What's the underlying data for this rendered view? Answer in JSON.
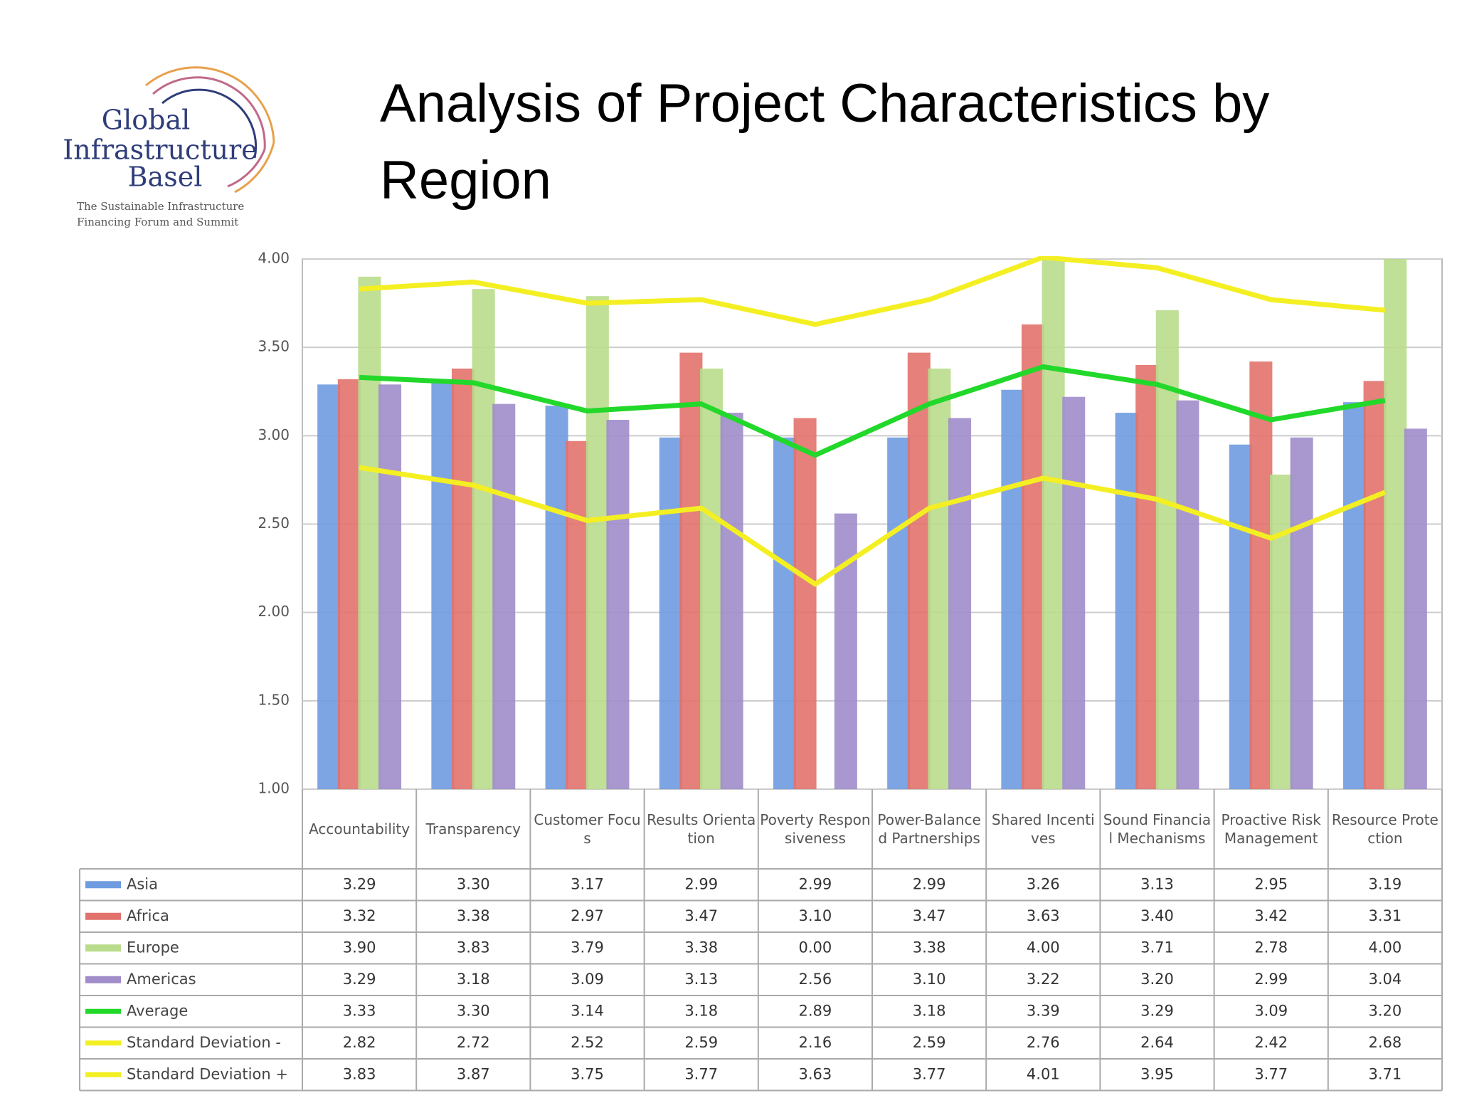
{
  "logo": {
    "lines": [
      "Global",
      "Infrastructure",
      "Basel"
    ],
    "tagline": [
      "The Sustainable Infrastructure",
      "Financing Forum and Summit"
    ]
  },
  "chart_data": {
    "type": "bar",
    "title": "Analysis of Project Characteristics by Region",
    "categories": [
      "Accountability",
      "Transparency",
      "Customer Focus",
      "Results Orientation",
      "Poverty Responsiveness",
      "Power-Balanced Partnerships",
      "Shared Incentives",
      "Sound Financial Mechanisms",
      "Proactive Risk Management",
      "Resource Protection"
    ],
    "ylim": [
      1,
      4
    ],
    "yticks": [
      {
        "value": 1,
        "label": "1.00"
      },
      {
        "value": 1.5,
        "label": "1.50"
      },
      {
        "value": 2,
        "label": "2.00"
      },
      {
        "value": 2.5,
        "label": "2.50"
      },
      {
        "value": 3,
        "label": "3.00"
      },
      {
        "value": 3.5,
        "label": "3.50"
      },
      {
        "value": 4,
        "label": "4.00"
      }
    ],
    "grid": true,
    "series": [
      {
        "name": "Asia",
        "type": "bar",
        "color": "#6f9be0",
        "values": [
          3.29,
          3.3,
          3.17,
          2.99,
          2.99,
          2.99,
          3.26,
          3.13,
          2.95,
          3.19
        ],
        "value_labels": [
          "3.29",
          "3.30",
          "3.17",
          "2.99",
          "2.99",
          "2.99",
          "3.26",
          "3.13",
          "2.95",
          "3.19"
        ]
      },
      {
        "name": "Africa",
        "type": "bar",
        "color": "#e2726c",
        "values": [
          3.32,
          3.38,
          2.97,
          3.47,
          3.1,
          3.47,
          3.63,
          3.4,
          3.42,
          3.31
        ],
        "value_labels": [
          "3.32",
          "3.38",
          "2.97",
          "3.47",
          "3.10",
          "3.47",
          "3.63",
          "3.40",
          "3.42",
          "3.31"
        ]
      },
      {
        "name": "Europe",
        "type": "bar",
        "color": "#b9dc8c",
        "values": [
          3.9,
          3.83,
          3.79,
          3.38,
          0,
          3.38,
          4,
          3.71,
          2.78,
          4
        ],
        "value_labels": [
          "3.90",
          "3.83",
          "3.79",
          "3.38",
          "0.00",
          "3.38",
          "4.00",
          "3.71",
          "2.78",
          "4.00"
        ]
      },
      {
        "name": "Americas",
        "type": "bar",
        "color": "#a08dca",
        "values": [
          3.29,
          3.18,
          3.09,
          3.13,
          2.56,
          3.1,
          3.22,
          3.2,
          2.99,
          3.04
        ],
        "value_labels": [
          "3.29",
          "3.18",
          "3.09",
          "3.13",
          "2.56",
          "3.10",
          "3.22",
          "3.20",
          "2.99",
          "3.04"
        ]
      },
      {
        "name": "Average",
        "type": "line",
        "color": "#22d82a",
        "values": [
          3.33,
          3.3,
          3.14,
          3.18,
          2.89,
          3.18,
          3.39,
          3.29,
          3.09,
          3.2
        ],
        "value_labels": [
          "3.33",
          "3.30",
          "3.14",
          "3.18",
          "2.89",
          "3.18",
          "3.39",
          "3.29",
          "3.09",
          "3.20"
        ]
      },
      {
        "name": "Standard Deviation -",
        "type": "line",
        "color": "#f4ef22",
        "values": [
          2.82,
          2.72,
          2.52,
          2.59,
          2.16,
          2.59,
          2.76,
          2.64,
          2.42,
          2.68
        ],
        "value_labels": [
          "2.82",
          "2.72",
          "2.52",
          "2.59",
          "2.16",
          "2.59",
          "2.76",
          "2.64",
          "2.42",
          "2.68"
        ]
      },
      {
        "name": "Standard Deviation +",
        "type": "line",
        "color": "#f4ef22",
        "values": [
          3.83,
          3.87,
          3.75,
          3.77,
          3.63,
          3.77,
          4.01,
          3.95,
          3.77,
          3.71
        ],
        "value_labels": [
          "3.83",
          "3.87",
          "3.75",
          "3.77",
          "3.63",
          "3.77",
          "4.01",
          "3.95",
          "3.77",
          "3.71"
        ]
      }
    ]
  }
}
